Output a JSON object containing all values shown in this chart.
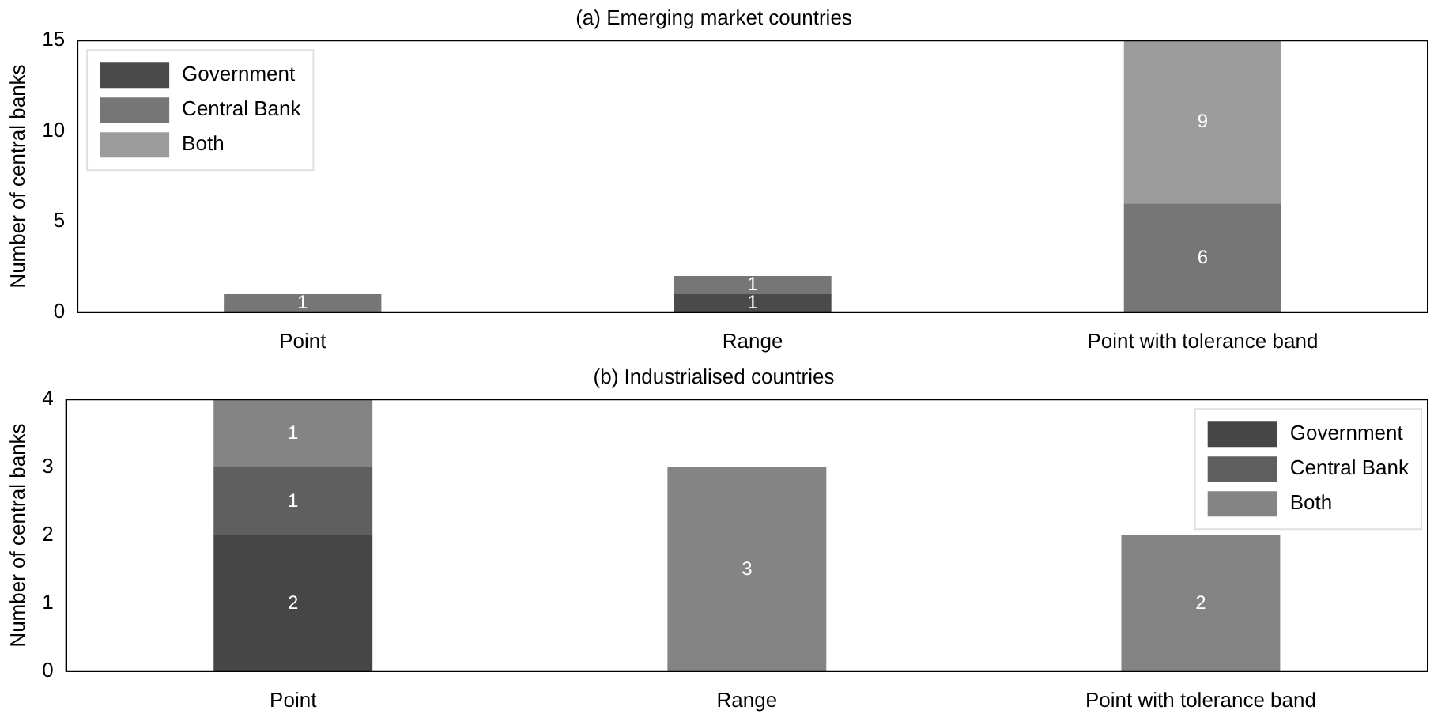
{
  "chart_data": [
    {
      "type": "bar",
      "title": "(a) Emerging market countries",
      "ylabel": "Number of central banks",
      "categories": [
        "Point",
        "Range",
        "Point with tolerance band"
      ],
      "stacked": true,
      "ylim": [
        0,
        15
      ],
      "yticks": [
        0,
        5,
        10,
        15
      ],
      "grid": false,
      "legend": "top left",
      "series": [
        {
          "name": "Government",
          "color": "#4a4a4a",
          "values": [
            0,
            1,
            0
          ],
          "value_labels": [
            null,
            "1",
            null
          ]
        },
        {
          "name": "Central Bank",
          "color": "#767676",
          "values": [
            1,
            1,
            6
          ],
          "value_labels": [
            "1",
            "1",
            "6"
          ]
        },
        {
          "name": "Both",
          "color": "#9c9c9c",
          "values": [
            0,
            0,
            9
          ],
          "value_labels": [
            null,
            null,
            "9"
          ]
        }
      ]
    },
    {
      "type": "bar",
      "title": "(b) Industrialised countries",
      "ylabel": "Number of central banks",
      "categories": [
        "Point",
        "Range",
        "Point with tolerance band"
      ],
      "stacked": true,
      "ylim": [
        0,
        4
      ],
      "yticks": [
        0,
        1,
        2,
        3,
        4
      ],
      "grid": false,
      "legend": "top right",
      "series": [
        {
          "name": "Government",
          "color": "#464646",
          "values": [
            2,
            0,
            0
          ],
          "value_labels": [
            "2",
            null,
            null
          ]
        },
        {
          "name": "Central Bank",
          "color": "#5f5f5f",
          "values": [
            1,
            0,
            0
          ],
          "value_labels": [
            "1",
            null,
            null
          ]
        },
        {
          "name": "Both",
          "color": "#848484",
          "values": [
            1,
            3,
            2
          ],
          "value_labels": [
            "1",
            "3",
            "2"
          ]
        }
      ]
    }
  ]
}
